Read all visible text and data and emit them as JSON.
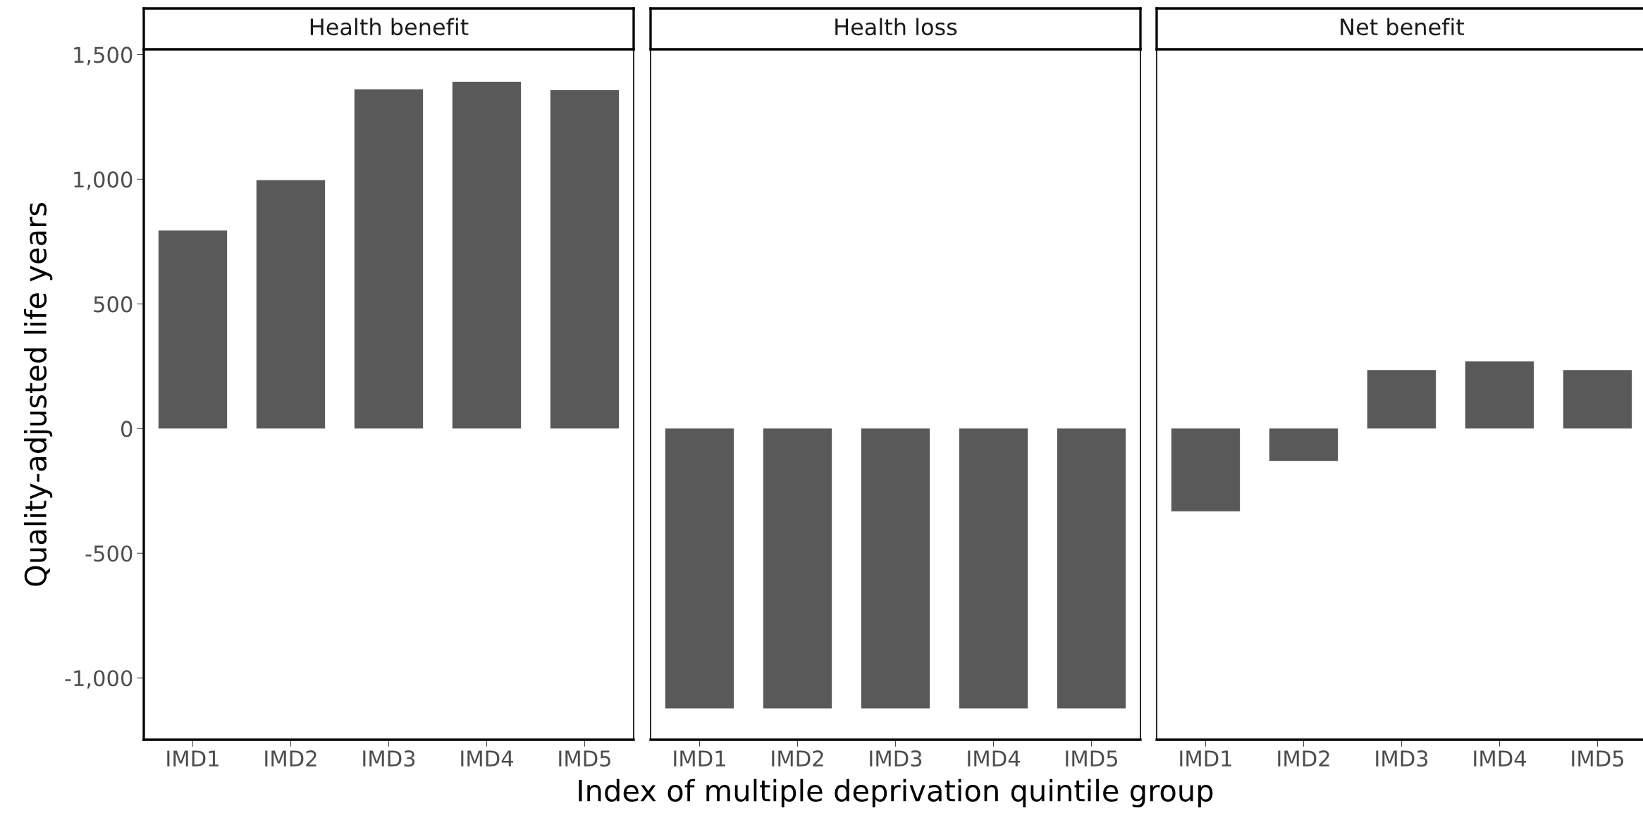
{
  "chart_data": [
    {
      "type": "bar",
      "title": "Health benefit",
      "ylabel": "Quality-adjusted life years",
      "categories": [
        "IMD1",
        "IMD2",
        "IMD3",
        "IMD4",
        "IMD5"
      ],
      "values": [
        794,
        996,
        1361,
        1391,
        1357
      ],
      "color": "#595959",
      "ylim": [
        -1248,
        1521
      ],
      "yticks": [
        {
          "value": -1000,
          "label": "-1,000"
        },
        {
          "value": -500,
          "label": "-500"
        },
        0,
        500,
        {
          "value": 1000,
          "label": "1,000"
        },
        {
          "value": 1500,
          "label": "1,500"
        }
      ],
      "grid": false
    },
    {
      "type": "bar",
      "title": "Health loss",
      "xlabel": "Index of multiple deprivation quintile group",
      "categories": [
        "IMD1",
        "IMD2",
        "IMD3",
        "IMD4",
        "IMD5"
      ],
      "values": [
        -1122,
        -1122,
        -1122,
        -1122,
        -1122
      ],
      "color": "#595959",
      "ylim": [
        -1248,
        1521
      ],
      "tick_labels": "x",
      "grid": false
    },
    {
      "type": "bar",
      "title": "Net benefit",
      "categories": [
        "IMD1",
        "IMD2",
        "IMD3",
        "IMD4",
        "IMD5"
      ],
      "values": [
        -332,
        -130,
        235,
        269,
        235
      ],
      "color": "#595959",
      "ylim": [
        -1248,
        1521
      ],
      "tick_labels": "x",
      "grid": false
    }
  ]
}
